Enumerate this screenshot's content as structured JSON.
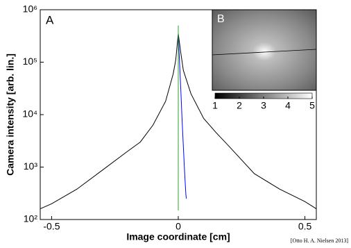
{
  "chart_data": {
    "type": "line",
    "xlabel": "Image coordinate [cm]",
    "ylabel": "Camera intensity [arb. lin.]",
    "panel_label": "A",
    "credit": "[Otto H. A. Nielsen 2013]",
    "log_y": true,
    "xlim": [
      -0.545,
      0.545
    ],
    "xticks": [
      -0.5,
      0,
      0.5
    ],
    "ylim": [
      100,
      1000000
    ],
    "yticks": [
      {
        "value": 100,
        "label": "10²"
      },
      {
        "value": 1000,
        "label": "10³"
      },
      {
        "value": 10000,
        "label": "10⁴"
      },
      {
        "value": 100000,
        "label": "10⁵"
      },
      {
        "value": 1000000,
        "label": "10⁶"
      }
    ],
    "series": [
      {
        "color": "#000000",
        "x": [
          -0.545,
          -0.5,
          -0.4,
          -0.3,
          -0.2,
          -0.15,
          -0.1,
          -0.05,
          -0.02,
          -0.01,
          0,
          0.01,
          0.02,
          0.05,
          0.1,
          0.15,
          0.2,
          0.3,
          0.4,
          0.5,
          0.545
        ],
        "values": [
          160,
          200,
          380,
          870,
          2000,
          3000,
          6300,
          18000,
          60000,
          110000,
          350000,
          150000,
          70000,
          25000,
          8500,
          4500,
          2500,
          750,
          380,
          220,
          160
        ]
      },
      {
        "color": "#0000ff",
        "x": [
          0,
          0.005,
          0.01,
          0.015,
          0.02,
          0.025,
          0.03,
          0.032
        ],
        "values": [
          350000,
          100000,
          30000,
          8000,
          2500,
          800,
          300,
          250
        ]
      },
      {
        "color": "#2ca02c",
        "x": [
          0,
          0
        ],
        "values": [
          150,
          500000
        ]
      }
    ],
    "inset": {
      "label": "B",
      "colorbar_lim": [
        1,
        5
      ],
      "colorbar_ticks": [
        1,
        2,
        3,
        4,
        5
      ]
    }
  }
}
